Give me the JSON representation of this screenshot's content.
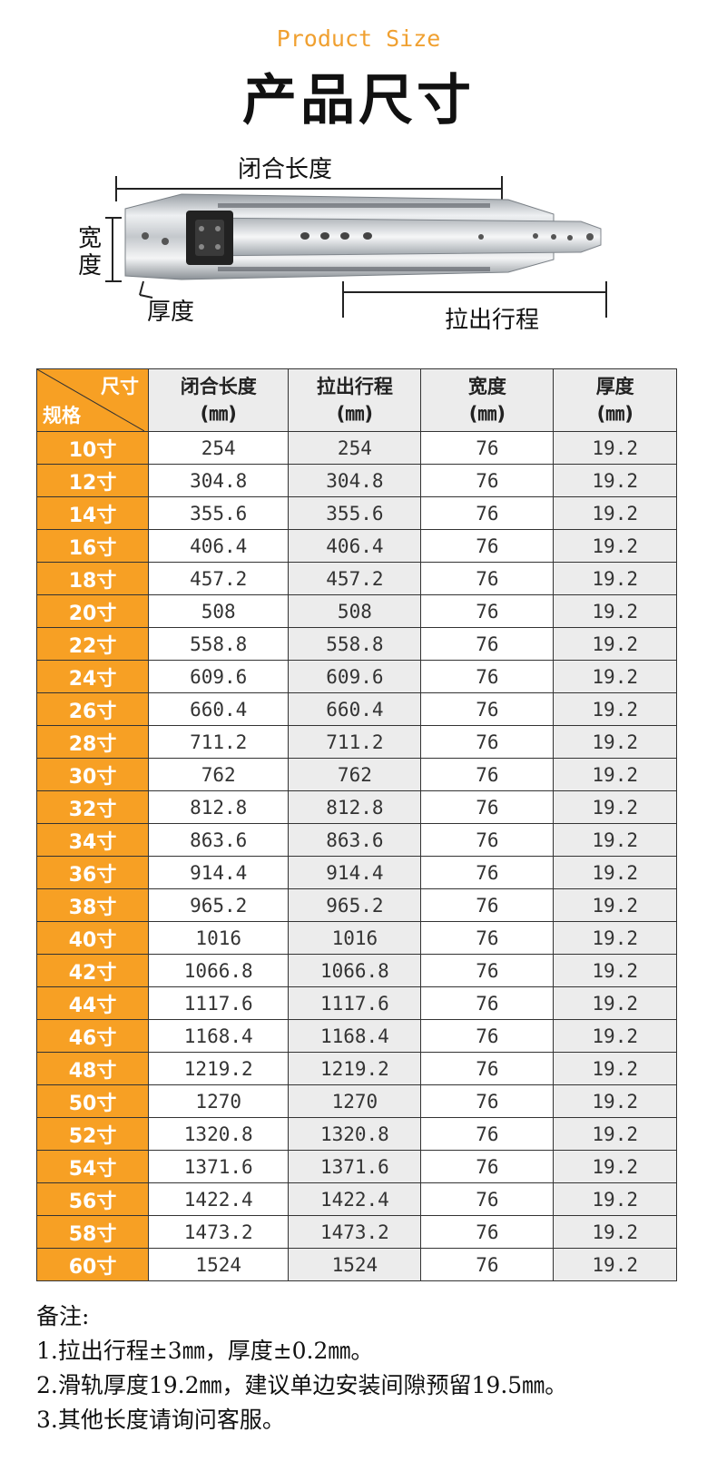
{
  "header": {
    "subtitle": "Product Size",
    "title": "产品尺寸"
  },
  "diagram": {
    "closed_length_label": "闭合长度",
    "width_label": "宽度",
    "thickness_label": "厚度",
    "extension_label": "拉出行程"
  },
  "table": {
    "corner_top": "尺寸",
    "corner_bottom": "规格",
    "headers": [
      {
        "name": "闭合长度",
        "unit": "(㎜)"
      },
      {
        "name": "拉出行程",
        "unit": "(㎜)"
      },
      {
        "name": "宽度",
        "unit": "(㎜)"
      },
      {
        "name": "厚度",
        "unit": "(㎜)"
      }
    ],
    "rows": [
      [
        "10寸",
        "254",
        "254",
        "76",
        "19.2"
      ],
      [
        "12寸",
        "304.8",
        "304.8",
        "76",
        "19.2"
      ],
      [
        "14寸",
        "355.6",
        "355.6",
        "76",
        "19.2"
      ],
      [
        "16寸",
        "406.4",
        "406.4",
        "76",
        "19.2"
      ],
      [
        "18寸",
        "457.2",
        "457.2",
        "76",
        "19.2"
      ],
      [
        "20寸",
        "508",
        "508",
        "76",
        "19.2"
      ],
      [
        "22寸",
        "558.8",
        "558.8",
        "76",
        "19.2"
      ],
      [
        "24寸",
        "609.6",
        "609.6",
        "76",
        "19.2"
      ],
      [
        "26寸",
        "660.4",
        "660.4",
        "76",
        "19.2"
      ],
      [
        "28寸",
        "711.2",
        "711.2",
        "76",
        "19.2"
      ],
      [
        "30寸",
        "762",
        "762",
        "76",
        "19.2"
      ],
      [
        "32寸",
        "812.8",
        "812.8",
        "76",
        "19.2"
      ],
      [
        "34寸",
        "863.6",
        "863.6",
        "76",
        "19.2"
      ],
      [
        "36寸",
        "914.4",
        "914.4",
        "76",
        "19.2"
      ],
      [
        "38寸",
        "965.2",
        "965.2",
        "76",
        "19.2"
      ],
      [
        "40寸",
        "1016",
        "1016",
        "76",
        "19.2"
      ],
      [
        "42寸",
        "1066.8",
        "1066.8",
        "76",
        "19.2"
      ],
      [
        "44寸",
        "1117.6",
        "1117.6",
        "76",
        "19.2"
      ],
      [
        "46寸",
        "1168.4",
        "1168.4",
        "76",
        "19.2"
      ],
      [
        "48寸",
        "1219.2",
        "1219.2",
        "76",
        "19.2"
      ],
      [
        "50寸",
        "1270",
        "1270",
        "76",
        "19.2"
      ],
      [
        "52寸",
        "1320.8",
        "1320.8",
        "76",
        "19.2"
      ],
      [
        "54寸",
        "1371.6",
        "1371.6",
        "76",
        "19.2"
      ],
      [
        "56寸",
        "1422.4",
        "1422.4",
        "76",
        "19.2"
      ],
      [
        "58寸",
        "1473.2",
        "1473.2",
        "76",
        "19.2"
      ],
      [
        "60寸",
        "1524",
        "1524",
        "76",
        "19.2"
      ]
    ]
  },
  "notes": {
    "heading": "备注:",
    "lines": [
      "1.拉出行程±3㎜，厚度±0.2㎜。",
      "2.滑轨厚度19.2㎜，建议单边安装间隙预留19.5㎜。",
      "3.其他长度请询问客服。"
    ]
  },
  "colors": {
    "accent_orange": "#f7a024",
    "subtitle_orange": "#f0a030",
    "alt_column_gray": "#ececec"
  }
}
